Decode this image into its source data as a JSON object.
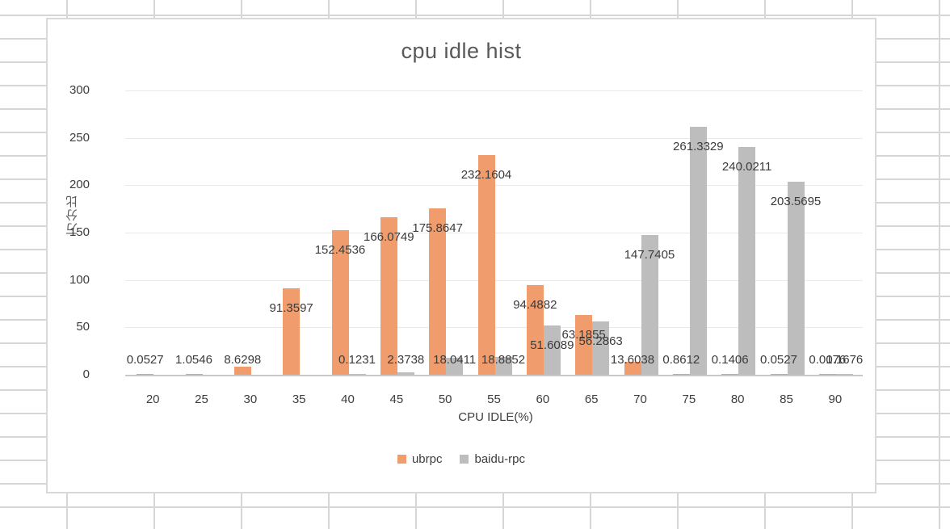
{
  "chart": {
    "title": "cpu idle hist",
    "x_axis_title": "CPU IDLE(%)",
    "y_axis_title": "万分比",
    "colors": {
      "ubrpc": "#F09C6D",
      "baidu_rpc": "#BDBDBD",
      "gridline": "#E9E9E9",
      "axis_line": "#C9C9C9",
      "text": "#3D3D3D",
      "title_text": "#595959"
    }
  },
  "chart_data": {
    "type": "bar",
    "title": "cpu idle hist",
    "xlabel": "CPU IDLE(%)",
    "ylabel": "万分比",
    "categories": [
      20,
      25,
      30,
      35,
      40,
      45,
      50,
      55,
      60,
      65,
      70,
      75,
      80,
      85,
      90
    ],
    "series": [
      {
        "name": "ubrpc",
        "color": "#F09C6D",
        "values": [
          0.0527,
          1.0546,
          8.6298,
          91.3597,
          152.4536,
          166.0749,
          175.8647,
          232.1604,
          94.4882,
          63.1855,
          13.6038,
          0.8612,
          0.1406,
          0.0527,
          0.0176
        ]
      },
      {
        "name": "baidu-rpc",
        "color": "#BDBDBD",
        "values": [
          null,
          null,
          null,
          null,
          0.1231,
          2.3738,
          18.0411,
          18.8852,
          51.6089,
          56.2863,
          147.7405,
          261.3329,
          240.0211,
          203.5695,
          0.1676
        ]
      }
    ],
    "ylim": [
      0,
      300
    ],
    "ytick_interval": 50,
    "yticks": [
      0,
      50,
      100,
      150,
      200,
      250,
      300
    ],
    "grid": true,
    "data_labels": true,
    "legend_position": "bottom"
  }
}
